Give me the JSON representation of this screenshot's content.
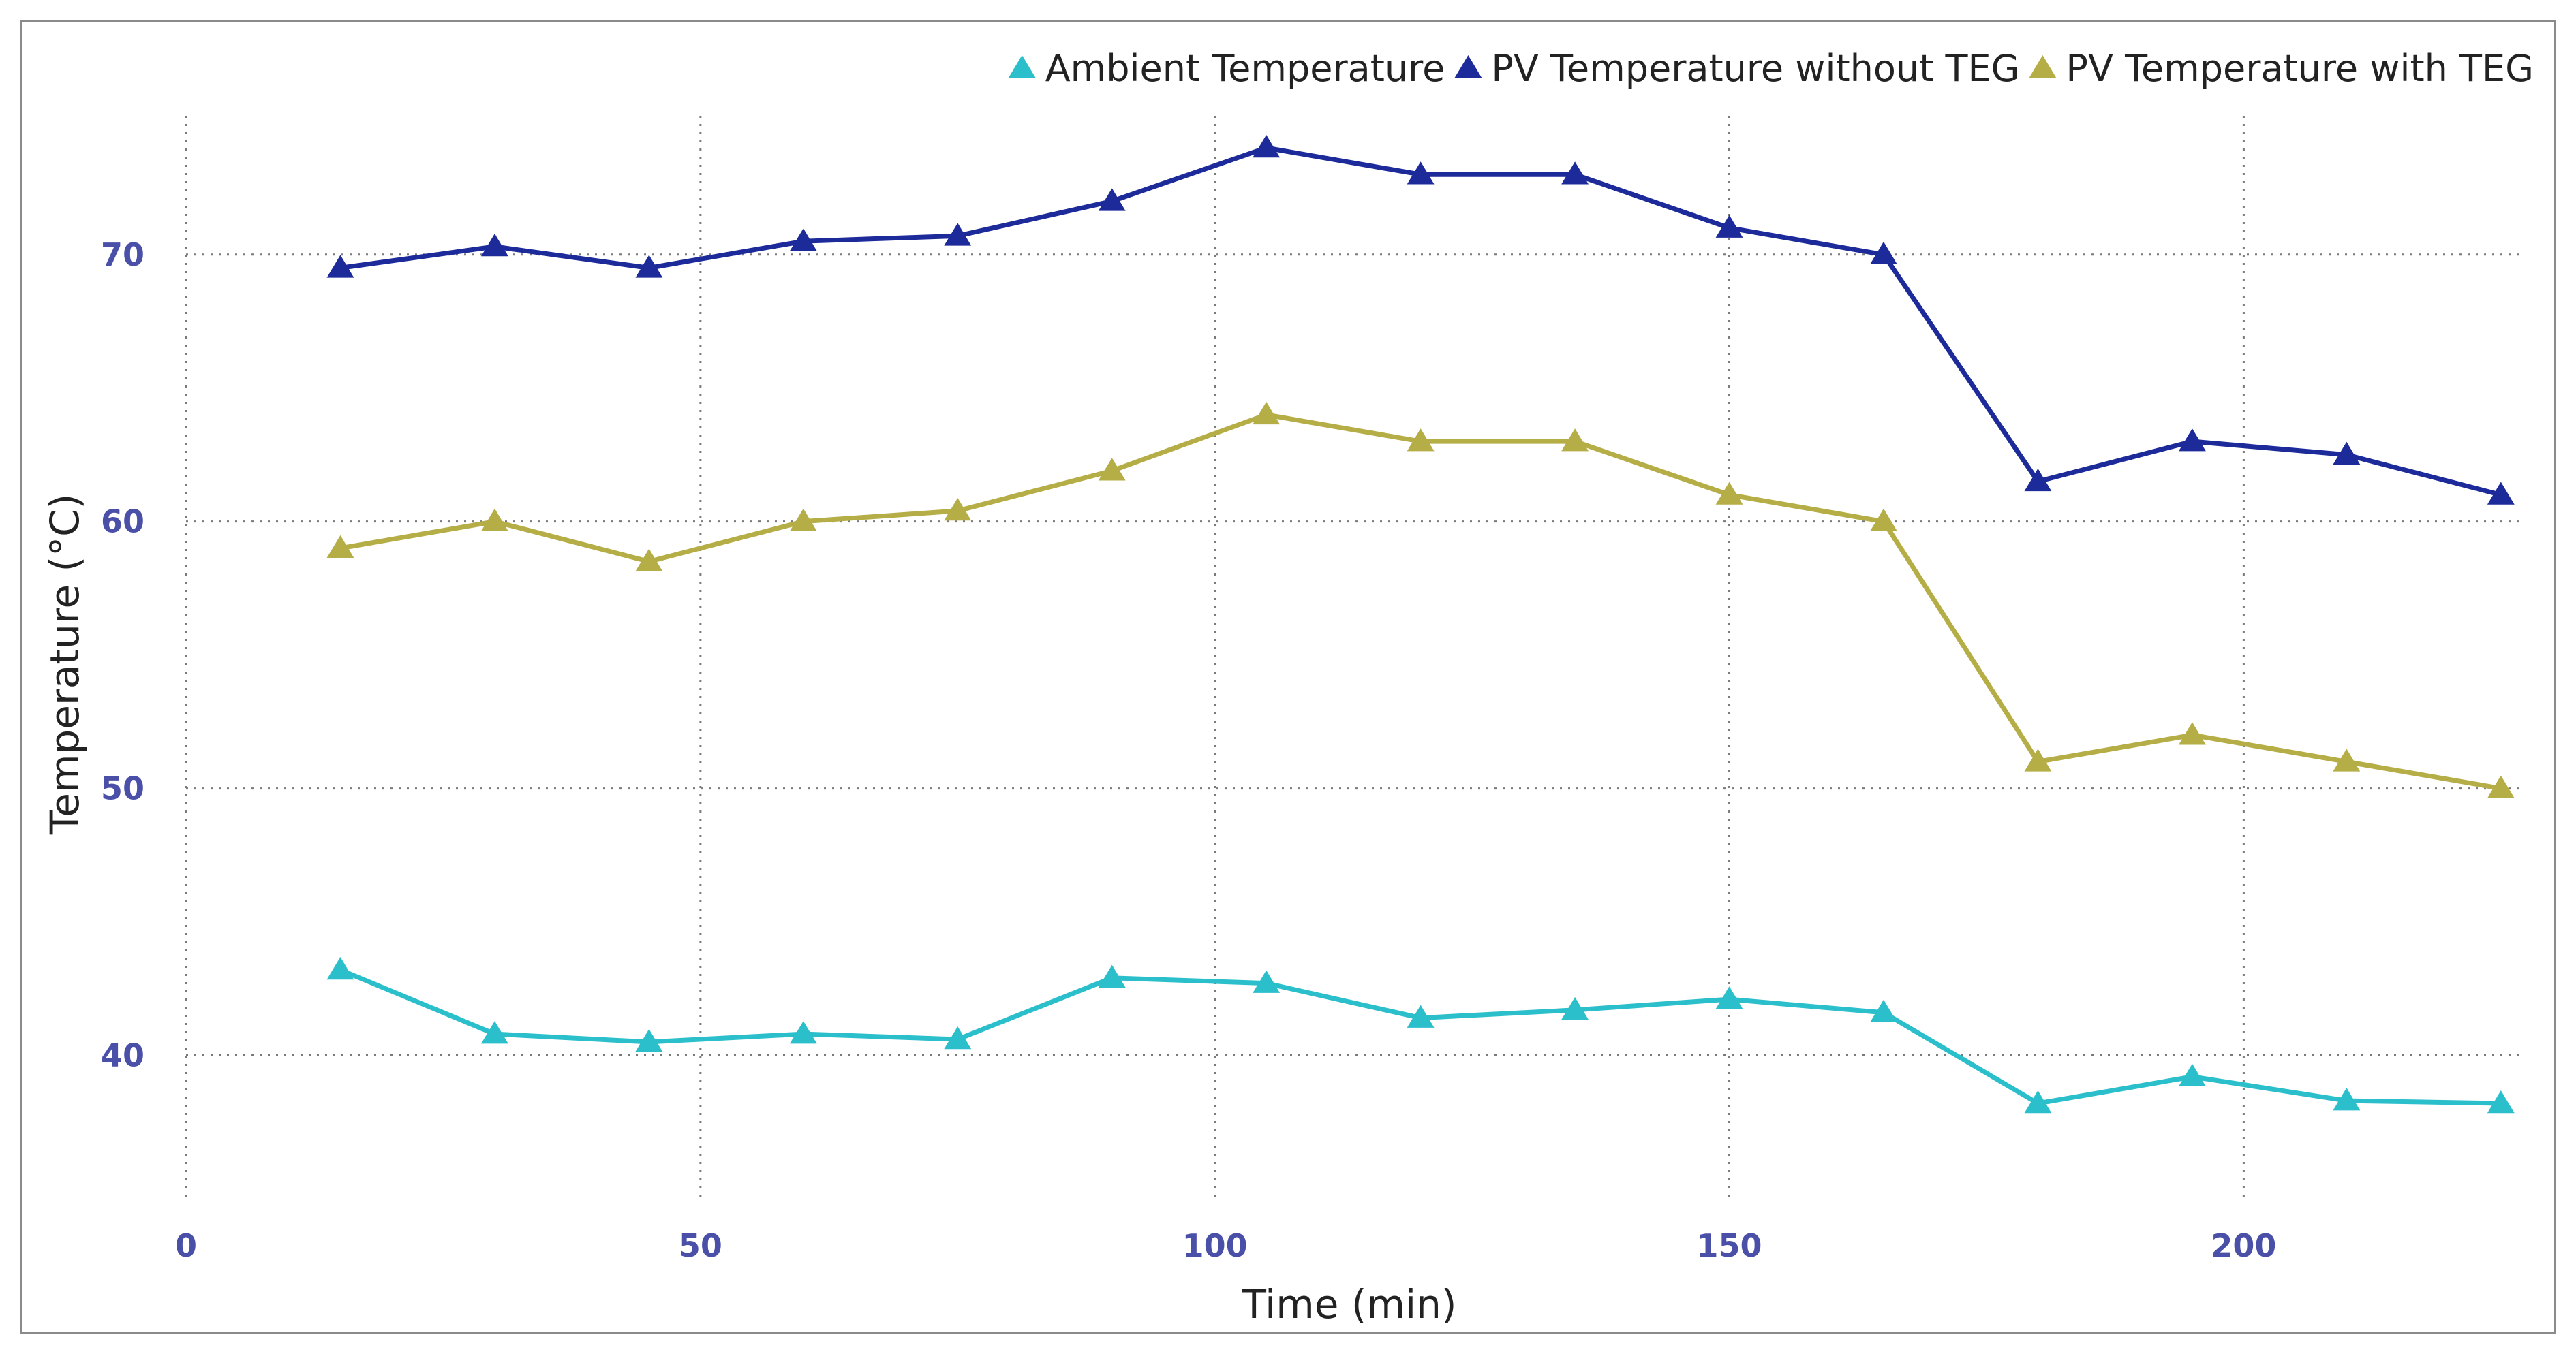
{
  "chart_data": {
    "type": "line",
    "title": "",
    "xlabel": "Time (min)",
    "ylabel": "Temperature (°C)",
    "xlim": [
      0,
      227
    ],
    "ylim": [
      34.5,
      75.2
    ],
    "xticks": [
      0,
      50,
      100,
      150,
      200
    ],
    "yticks": [
      40,
      50,
      60,
      70
    ],
    "grid": true,
    "legend_position": "top-right",
    "x": [
      15,
      30,
      45,
      60,
      75,
      90,
      105,
      120,
      135,
      150,
      165,
      180,
      195,
      210,
      225
    ],
    "series": [
      {
        "name": "Ambient Temperature",
        "color": "#2bbfcb",
        "marker": "triangle",
        "values": [
          43.2,
          40.8,
          40.5,
          40.8,
          40.6,
          42.9,
          42.7,
          41.4,
          41.7,
          42.1,
          41.6,
          38.2,
          39.2,
          38.3,
          38.2
        ]
      },
      {
        "name": "PV Temperature without TEG",
        "color": "#1c2a9a",
        "marker": "triangle",
        "values": [
          69.5,
          70.3,
          69.5,
          70.5,
          70.7,
          72.0,
          74.0,
          73.0,
          73.0,
          71.0,
          70.0,
          61.5,
          63.0,
          62.5,
          61.0
        ]
      },
      {
        "name": "PV Temperature with TEG",
        "color": "#b5ad45",
        "marker": "triangle",
        "values": [
          59.0,
          60.0,
          58.5,
          60.0,
          60.4,
          61.9,
          64.0,
          63.0,
          63.0,
          61.0,
          60.0,
          51.0,
          52.0,
          51.0,
          50.0
        ]
      }
    ]
  }
}
